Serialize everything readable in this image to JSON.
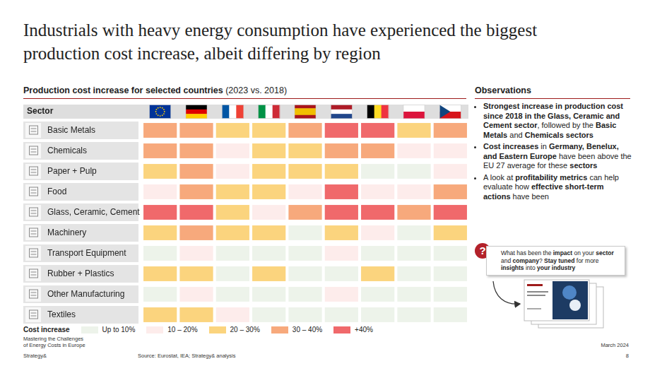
{
  "header": {
    "title": "Industrials with heavy energy consumption have experienced the biggest production cost increase, albeit differing by region"
  },
  "left_panel": {
    "heading": [
      {
        "text": "Production cost increase for selected countries",
        "bold": true
      },
      {
        "text": " (2023 vs. 2018)",
        "bold": false
      }
    ]
  },
  "chart_data": {
    "type": "heatmap",
    "row_header": "Sector",
    "categories": [
      "Basic Metals",
      "Chemicals",
      "Paper + Pulp",
      "Food",
      "Glass, Ceramic, Cement",
      "Machinery",
      "Transport Equipment",
      "Rubber + Plastics",
      "Other Manufacturing",
      "Textiles"
    ],
    "cells": [
      [
        35,
        35,
        25,
        25,
        35,
        45,
        45,
        25,
        35
      ],
      [
        35,
        35,
        15,
        25,
        25,
        35,
        35,
        15,
        15
      ],
      [
        25,
        35,
        15,
        25,
        25,
        25,
        5,
        5,
        15
      ],
      [
        15,
        35,
        25,
        25,
        15,
        45,
        15,
        15,
        35
      ],
      [
        45,
        45,
        25,
        15,
        35,
        45,
        45,
        35,
        45
      ],
      [
        25,
        35,
        25,
        25,
        5,
        25,
        15,
        5,
        25
      ],
      [
        5,
        15,
        5,
        5,
        5,
        15,
        5,
        5,
        5
      ],
      [
        25,
        25,
        5,
        25,
        5,
        5,
        25,
        5,
        5
      ],
      [
        5,
        15,
        5,
        5,
        5,
        15,
        5,
        5,
        5
      ],
      [
        25,
        25,
        15,
        5,
        5,
        5,
        5,
        5,
        5
      ]
    ],
    "legend_title": "Cost increase",
    "legend": "bottom",
    "color_bins": [
      {
        "from": 0,
        "label": "Up to 10%",
        "color": "#edf3ea"
      },
      {
        "from": 10,
        "label": "10 – 20%",
        "color": "#fdeceb"
      },
      {
        "from": 20,
        "label": "20 – 30%",
        "color": "#fbd47e"
      },
      {
        "from": 30,
        "label": "30 – 40%",
        "color": "#f7a97c"
      },
      {
        "from": 40,
        "label": "+40%",
        "color": "#f0696b"
      }
    ]
  },
  "observations": {
    "heading": "Observations",
    "bullets": [
      [
        {
          "text": "Strongest increase in production cost since 2018 in the Glass, Ceramic and Cement sector",
          "bold": true
        },
        {
          "text": ", followed by the ",
          "bold": false
        },
        {
          "text": "Basic Metals",
          "bold": true
        },
        {
          "text": " and ",
          "bold": false
        },
        {
          "text": "Chemicals sectors",
          "bold": true
        }
      ],
      [
        {
          "text": "Cost increases",
          "bold": true
        },
        {
          "text": " in ",
          "bold": false
        },
        {
          "text": "Germany, Benelux, and Eastern Europe",
          "bold": true
        },
        {
          "text": " have been above the EU 27 average for these ",
          "bold": false
        },
        {
          "text": "sectors",
          "bold": true
        }
      ],
      [
        {
          "text": "A look at ",
          "bold": false
        },
        {
          "text": "profitability metrics",
          "bold": true
        },
        {
          "text": " can help evaluate how ",
          "bold": false
        },
        {
          "text": "effective short-term actions",
          "bold": true
        },
        {
          "text": " have been",
          "bold": false
        }
      ]
    ],
    "callout_mark": "?",
    "callout": [
      {
        "text": "What has been the ",
        "bold": false
      },
      {
        "text": "impact",
        "bold": true
      },
      {
        "text": " on your ",
        "bold": false
      },
      {
        "text": "sector",
        "bold": true
      },
      {
        "text": " and ",
        "bold": false
      },
      {
        "text": "company",
        "bold": true
      },
      {
        "text": "? ",
        "bold": false
      },
      {
        "text": "Stay tuned",
        "bold": true
      },
      {
        "text": " for more ",
        "bold": false
      },
      {
        "text": "insights",
        "bold": true
      },
      {
        "text": " into ",
        "bold": false
      },
      {
        "text": "your industry",
        "bold": true
      }
    ]
  },
  "footer": {
    "series_title": [
      "Mastering the Challenges",
      "of Energy Costs in Europe"
    ],
    "brand": "Strategy&",
    "source": "Source: Eurostat, IEA; Strategy& analysis",
    "date": "March 2024",
    "page": 8
  }
}
